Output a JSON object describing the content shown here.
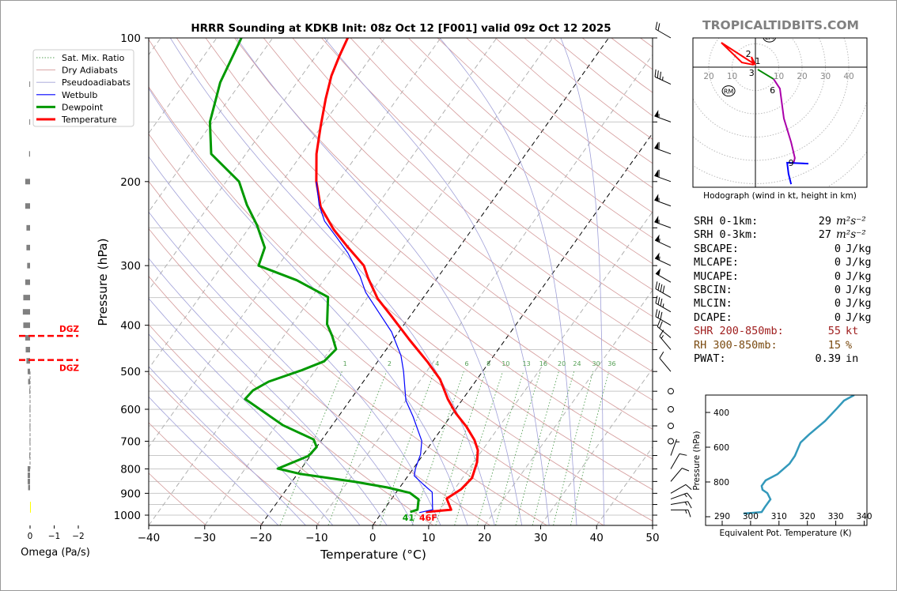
{
  "title": "HRRR Sounding at KDKB Init: 08z Oct 12 [F001] valid 09z Oct 12 2025",
  "watermark": "TROPICALTIDBITS.COM",
  "colors": {
    "temperature": "#ff0000",
    "dewpoint": "#009900",
    "wetbulb": "#0000ff",
    "dry_adiabat": "#d49a9a",
    "pseudoadiabat": "#a0a0d8",
    "mixing_ratio": "#55a055",
    "watermark": "#808080",
    "shr": "#a02020",
    "rh": "#7a4a10",
    "thetae": "#3399bb",
    "omega_bar": "#808080",
    "omega_up": "#ffff00",
    "dgz": "#ff0000"
  },
  "legend": [
    {
      "label": "Sat. Mix. Ratio",
      "key": "mixing_ratio"
    },
    {
      "label": "Dry Adiabats",
      "key": "dry_adiabat"
    },
    {
      "label": "Pseudoadiabats",
      "key": "pseudoadiabat"
    },
    {
      "label": "Wetbulb",
      "key": "wetbulb"
    },
    {
      "label": "Dewpoint",
      "key": "dewpoint"
    },
    {
      "label": "Temperature",
      "key": "temperature"
    }
  ],
  "stats": [
    {
      "label": "SRH 0-1km:",
      "value": "29",
      "unit": "m²s⁻²",
      "color": "#000000"
    },
    {
      "label": "SRH 0-3km:",
      "value": "27",
      "unit": "m²s⁻²",
      "color": "#000000"
    },
    {
      "label": "SBCAPE:",
      "value": "0",
      "unit": "J/kg",
      "color": "#000000"
    },
    {
      "label": "MLCAPE:",
      "value": "0",
      "unit": "J/kg",
      "color": "#000000"
    },
    {
      "label": "MUCAPE:",
      "value": "0",
      "unit": "J/kg",
      "color": "#000000"
    },
    {
      "label": "SBCIN:",
      "value": "0",
      "unit": "J/kg",
      "color": "#000000"
    },
    {
      "label": "MLCIN:",
      "value": "0",
      "unit": "J/kg",
      "color": "#000000"
    },
    {
      "label": "DCAPE:",
      "value": "0",
      "unit": "J/kg",
      "color": "#000000"
    },
    {
      "label": "SHR 200-850mb:",
      "value": "55",
      "unit": "kt",
      "color": "#a02020"
    },
    {
      "label": "RH 300-850mb:",
      "value": "15",
      "unit": "%",
      "color": "#7a4a10"
    },
    {
      "label": "PWAT:",
      "value": "0.39",
      "unit": "in",
      "color": "#000000"
    }
  ],
  "chart_data": [
    {
      "type": "line",
      "name": "skewt",
      "title": "HRRR Sounding at KDKB Init: 08z Oct 12 [F001] valid 09z Oct 12 2025",
      "xlabel": "Temperature (°C)",
      "ylabel": "Pressure (hPa)",
      "xlim": [
        -40,
        50
      ],
      "ylim": [
        1050,
        100
      ],
      "xticks": [
        -40,
        -30,
        -20,
        -10,
        0,
        10,
        20,
        30,
        40,
        50
      ],
      "yticks": [
        100,
        200,
        300,
        400,
        500,
        600,
        700,
        800,
        900,
        1000
      ],
      "surface_temp_label": "46F",
      "surface_dewpoint_label": "41",
      "mixing_ratio_labels": [
        "1",
        "2",
        "4",
        "6",
        "8",
        "10",
        "13",
        "16",
        "20",
        "24",
        "30",
        "36"
      ],
      "series": [
        {
          "name": "Temperature",
          "pressure": [
            985,
            974,
            923,
            882,
            836,
            775,
            731,
            696,
            653,
            611,
            571,
            519,
            477,
            429,
            383,
            352,
            319,
            300,
            274,
            252,
            226,
            200,
            175,
            153,
            134,
            120,
            109,
            100
          ],
          "values": [
            7.8,
            12.0,
            9.8,
            11.2,
            11.7,
            10.6,
            9.2,
            7.3,
            4.2,
            0.5,
            -2.7,
            -6.6,
            -11.1,
            -17.1,
            -23.3,
            -28.0,
            -32.3,
            -34.7,
            -40.0,
            -44.7,
            -49.9,
            -53.9,
            -57.4,
            -60.2,
            -62.8,
            -64.7,
            -65.8,
            -66.6
          ]
        },
        {
          "name": "Dewpoint",
          "pressure": [
            985,
            974,
            927,
            898,
            875,
            852,
            820,
            799,
            751,
            720,
            694,
            648,
            571,
            548,
            525,
            498,
            476,
            449,
            421,
            398,
            349,
            322,
            300,
            275,
            247,
            224,
            200,
            175,
            150,
            124,
            100
          ],
          "values": [
            5.0,
            6.0,
            4.9,
            2.5,
            -2.2,
            -8.5,
            -19.4,
            -24.2,
            -20.3,
            -20.0,
            -21.5,
            -28.8,
            -38.9,
            -38.6,
            -36.9,
            -32.6,
            -29.6,
            -29.0,
            -31.4,
            -33.8,
            -37.1,
            -44.8,
            -53.5,
            -54.7,
            -58.9,
            -63.3,
            -67.7,
            -76.2,
            -80.5,
            -83.7,
            -85.6
          ]
        },
        {
          "name": "Wetbulb",
          "pressure": [
            988,
            974,
            895,
            862,
            827,
            799,
            746,
            699,
            621,
            575,
            500,
            463,
            413,
            375,
            341,
            316,
            282,
            261,
            242,
            224,
            200
          ],
          "values": [
            6.7,
            8.7,
            6.4,
            3.8,
            1.1,
            0.4,
            -0.5,
            -2.0,
            -6.7,
            -10.0,
            -14.1,
            -16.6,
            -21.3,
            -26.2,
            -31.0,
            -34.0,
            -39.2,
            -43.3,
            -47.4,
            -50.4,
            -53.9
          ]
        }
      ],
      "wind_barbs": [
        {
          "p": 100,
          "speed_kt": 20,
          "dir": 300
        },
        {
          "p": 125,
          "speed_kt": 35,
          "dir": 295
        },
        {
          "p": 150,
          "speed_kt": 55,
          "dir": 290
        },
        {
          "p": 175,
          "speed_kt": 60,
          "dir": 290
        },
        {
          "p": 200,
          "speed_kt": 60,
          "dir": 290
        },
        {
          "p": 225,
          "speed_kt": 55,
          "dir": 290
        },
        {
          "p": 250,
          "speed_kt": 55,
          "dir": 290
        },
        {
          "p": 275,
          "speed_kt": 55,
          "dir": 295
        },
        {
          "p": 300,
          "speed_kt": 55,
          "dir": 295
        },
        {
          "p": 325,
          "speed_kt": 50,
          "dir": 300
        },
        {
          "p": 350,
          "speed_kt": 40,
          "dir": 300
        },
        {
          "p": 375,
          "speed_kt": 35,
          "dir": 300
        },
        {
          "p": 400,
          "speed_kt": 30,
          "dir": 300
        },
        {
          "p": 425,
          "speed_kt": 20,
          "dir": 310
        },
        {
          "p": 450,
          "speed_kt": 15,
          "dir": 320
        },
        {
          "p": 500,
          "speed_kt": 10,
          "dir": 320
        },
        {
          "p": 550,
          "speed_kt": 0,
          "dir": 0
        },
        {
          "p": 600,
          "speed_kt": 0,
          "dir": 0
        },
        {
          "p": 650,
          "speed_kt": 0,
          "dir": 0
        },
        {
          "p": 700,
          "speed_kt": 0,
          "dir": 0
        },
        {
          "p": 750,
          "speed_kt": 5,
          "dir": 20
        },
        {
          "p": 800,
          "speed_kt": 10,
          "dir": 30
        },
        {
          "p": 850,
          "speed_kt": 10,
          "dir": 40
        },
        {
          "p": 900,
          "speed_kt": 10,
          "dir": 60
        },
        {
          "p": 925,
          "speed_kt": 15,
          "dir": 70
        },
        {
          "p": 950,
          "speed_kt": 15,
          "dir": 80
        },
        {
          "p": 975,
          "speed_kt": 15,
          "dir": 90
        }
      ]
    },
    {
      "type": "line",
      "name": "hodograph",
      "caption": "Hodograph (wind in kt, height in km)",
      "ring_labels": [
        "20",
        "10",
        "10",
        "20",
        "30",
        "40"
      ],
      "rm_label": "RM",
      "lm_label": "LM",
      "height_labels": [
        {
          "km": "1",
          "u": 0,
          "v": 1.7
        },
        {
          "km": "2",
          "u": -2,
          "v": 4.8
        },
        {
          "km": "3",
          "u": -0.6,
          "v": -0.7
        },
        {
          "km": "6",
          "u": 8,
          "v": -6.5
        },
        {
          "km": "9",
          "u": 15.3,
          "v": -41
        }
      ],
      "segments": [
        {
          "layer": "0-3km",
          "color": "#ff0000",
          "u": [
            0,
            -1.7,
            -1,
            -14.6,
            -5.8,
            -0.7
          ],
          "v": [
            1,
            4.4,
            1.7,
            10.5,
            2,
            1
          ]
        },
        {
          "layer": "3-6km",
          "color": "#008800",
          "u": [
            1,
            7.8
          ],
          "v": [
            -1,
            -5.1
          ]
        },
        {
          "layer": "6-9km",
          "color": "#aa00aa",
          "u": [
            7.8,
            10.5,
            12.2,
            15.3,
            16.9,
            16.3
          ],
          "v": [
            -5.1,
            -9.2,
            -22,
            -32.2,
            -39,
            -41.4
          ]
        },
        {
          "layer": "9+km",
          "color": "#0000ff",
          "u": [
            22.7,
            13.6,
            14.2,
            15.3
          ],
          "v": [
            -41.4,
            -41,
            -45.8,
            -50.2
          ]
        }
      ],
      "rm": {
        "u": -11.5,
        "v": -7.5
      },
      "lm": {
        "u": 6,
        "v": 13
      }
    },
    {
      "type": "line",
      "name": "theta-e",
      "xlabel": "Equivalent Pot. Temperature (K)",
      "ylabel": "Pressure (hPa)",
      "xticks": [
        290,
        300,
        310,
        320,
        330,
        340
      ],
      "yticks": [
        400,
        600,
        800
      ],
      "xlim": [
        284,
        341
      ],
      "ylim": [
        1060,
        300
      ],
      "theta_e": [
        297.5,
        303.9,
        305.0,
        307.0,
        305.9,
        304.2,
        303.9,
        305.3,
        309.5,
        313.7,
        315.6,
        317.6,
        320.6,
        326.2,
        330.4,
        332.9,
        336.5
      ],
      "pressure": [
        982,
        973,
        945,
        900,
        864,
        845,
        823,
        791,
        755,
        695,
        650,
        573,
        527,
        450,
        377,
        332,
        300
      ]
    },
    {
      "type": "bar",
      "name": "omega",
      "xlabel": "Omega (Pa/s)",
      "xticks": [
        "0",
        "−1",
        "−2"
      ],
      "xlim": [
        0.4,
        -2.3
      ],
      "dgz_label": "DGZ",
      "dgz_pressures": [
        421,
        473
      ],
      "pressure": [
        125,
        150,
        175,
        200,
        225,
        250,
        275,
        300,
        325,
        350,
        375,
        400,
        425,
        450,
        475,
        500,
        525,
        550,
        600,
        650,
        700,
        750,
        800,
        825,
        850,
        875,
        950,
        975
      ],
      "values": [
        0.03,
        0.03,
        0.04,
        0.2,
        0.2,
        0.15,
        0.15,
        0.12,
        0.2,
        0.28,
        0.3,
        0.28,
        0.2,
        0.18,
        0.15,
        0.1,
        0.08,
        0.03,
        0.02,
        0.02,
        0.02,
        0.03,
        0.1,
        0.1,
        0.1,
        0.08,
        -0.03,
        -0.03
      ]
    }
  ]
}
